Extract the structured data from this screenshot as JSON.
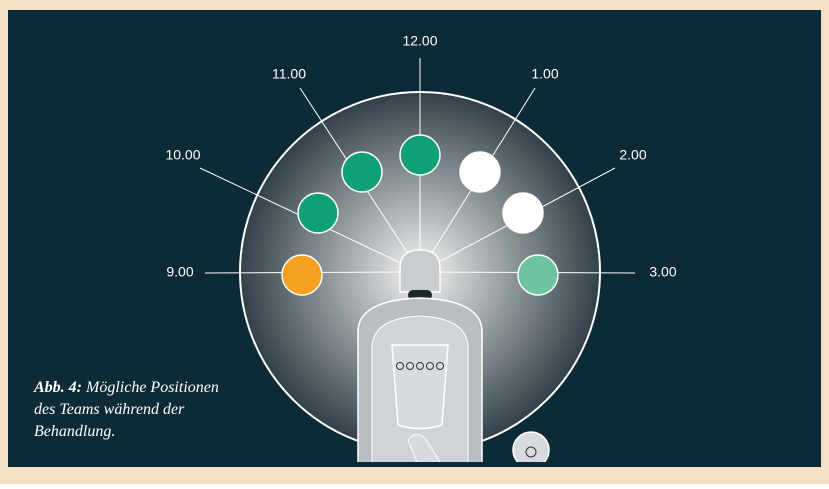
{
  "positions": [
    {
      "label": "12.00"
    },
    {
      "label": "11.00"
    },
    {
      "label": "1.00"
    },
    {
      "label": "10.00"
    },
    {
      "label": "2.00"
    },
    {
      "label": "9.00"
    },
    {
      "label": "3.00"
    }
  ],
  "caption": {
    "label": "Abb. 4:",
    "lines": [
      "Mögliche Positionen",
      "des Teams während der",
      "Behandlung."
    ]
  }
}
